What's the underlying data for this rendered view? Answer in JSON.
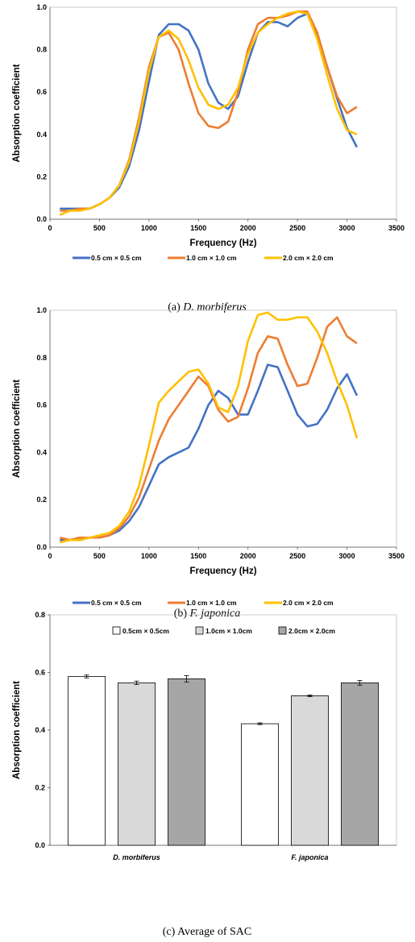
{
  "captions": [
    {
      "prefix": "(a)",
      "text": "D.  morbiferus",
      "italic": true
    },
    {
      "prefix": "(b)",
      "text": "F.  japonica",
      "italic": true
    },
    {
      "prefix": "(c)",
      "text": "Average  of  SAC",
      "italic": false
    }
  ],
  "chart_data": [
    {
      "type": "line",
      "xlabel": "Frequency (Hz)",
      "ylabel": "Absorption coefficient",
      "xlim": [
        0,
        3500
      ],
      "ylim": [
        0,
        1.0
      ],
      "xticks": [
        0,
        500,
        1000,
        1500,
        2000,
        2500,
        3000,
        3500
      ],
      "yticks": [
        0.0,
        0.2,
        0.4,
        0.6,
        0.8,
        1.0
      ],
      "legend_position": "bottom",
      "series": [
        {
          "name": "0.5 cm × 0.5 cm",
          "color": "#4472C4",
          "x": [
            100,
            200,
            300,
            400,
            500,
            600,
            700,
            800,
            900,
            1000,
            1100,
            1200,
            1300,
            1400,
            1500,
            1600,
            1700,
            1800,
            1900,
            2000,
            2100,
            2200,
            2300,
            2400,
            2500,
            2600,
            2700,
            2800,
            2900,
            3000,
            3100
          ],
          "y": [
            0.05,
            0.05,
            0.05,
            0.05,
            0.07,
            0.1,
            0.15,
            0.25,
            0.42,
            0.65,
            0.87,
            0.92,
            0.92,
            0.89,
            0.8,
            0.64,
            0.55,
            0.52,
            0.58,
            0.74,
            0.88,
            0.93,
            0.93,
            0.91,
            0.95,
            0.97,
            0.87,
            0.72,
            0.57,
            0.43,
            0.34
          ]
        },
        {
          "name": "1.0 cm × 1.0 cm",
          "color": "#ED7D31",
          "x": [
            100,
            200,
            300,
            400,
            500,
            600,
            700,
            800,
            900,
            1000,
            1100,
            1200,
            1300,
            1400,
            1500,
            1600,
            1700,
            1800,
            1900,
            2000,
            2100,
            2200,
            2300,
            2400,
            2500,
            2600,
            2700,
            2800,
            2900,
            3000,
            3100
          ],
          "y": [
            0.04,
            0.04,
            0.05,
            0.05,
            0.07,
            0.1,
            0.16,
            0.28,
            0.48,
            0.72,
            0.86,
            0.88,
            0.8,
            0.64,
            0.5,
            0.44,
            0.43,
            0.46,
            0.6,
            0.8,
            0.92,
            0.95,
            0.95,
            0.96,
            0.98,
            0.98,
            0.88,
            0.72,
            0.58,
            0.5,
            0.53
          ]
        },
        {
          "name": "2.0 cm × 2.0 cm",
          "color": "#FFC000",
          "x": [
            100,
            200,
            300,
            400,
            500,
            600,
            700,
            800,
            900,
            1000,
            1100,
            1200,
            1300,
            1400,
            1500,
            1600,
            1700,
            1800,
            1900,
            2000,
            2100,
            2200,
            2300,
            2400,
            2500,
            2600,
            2700,
            2800,
            2900,
            3000,
            3100
          ],
          "y": [
            0.02,
            0.04,
            0.04,
            0.05,
            0.07,
            0.1,
            0.16,
            0.27,
            0.46,
            0.7,
            0.86,
            0.89,
            0.85,
            0.75,
            0.62,
            0.54,
            0.52,
            0.54,
            0.62,
            0.78,
            0.88,
            0.92,
            0.95,
            0.97,
            0.98,
            0.97,
            0.85,
            0.68,
            0.52,
            0.42,
            0.4
          ]
        }
      ]
    },
    {
      "type": "line",
      "xlabel": "Frequency (Hz)",
      "ylabel": "Absorption coefficient",
      "xlim": [
        0,
        3500
      ],
      "ylim": [
        0,
        1.0
      ],
      "xticks": [
        0,
        500,
        1000,
        1500,
        2000,
        2500,
        3000,
        3500
      ],
      "yticks": [
        0.0,
        0.2,
        0.4,
        0.6,
        0.8,
        1.0
      ],
      "legend_position": "bottom",
      "series": [
        {
          "name": "0.5 cm × 0.5 cm",
          "color": "#4472C4",
          "x": [
            100,
            200,
            300,
            400,
            500,
            600,
            700,
            800,
            900,
            1000,
            1100,
            1200,
            1300,
            1400,
            1500,
            1600,
            1700,
            1800,
            1900,
            2000,
            2100,
            2200,
            2300,
            2400,
            2500,
            2600,
            2700,
            2800,
            2900,
            3000,
            3100
          ],
          "y": [
            0.03,
            0.03,
            0.03,
            0.04,
            0.04,
            0.05,
            0.07,
            0.11,
            0.17,
            0.26,
            0.35,
            0.38,
            0.4,
            0.42,
            0.5,
            0.6,
            0.66,
            0.63,
            0.56,
            0.56,
            0.66,
            0.77,
            0.76,
            0.66,
            0.56,
            0.51,
            0.52,
            0.58,
            0.67,
            0.73,
            0.64
          ]
        },
        {
          "name": "1.0 cm × 1.0 cm",
          "color": "#ED7D31",
          "x": [
            100,
            200,
            300,
            400,
            500,
            600,
            700,
            800,
            900,
            1000,
            1100,
            1200,
            1300,
            1400,
            1500,
            1600,
            1700,
            1800,
            1900,
            2000,
            2100,
            2200,
            2300,
            2400,
            2500,
            2600,
            2700,
            2800,
            2900,
            3000,
            3100
          ],
          "y": [
            0.04,
            0.03,
            0.04,
            0.04,
            0.04,
            0.05,
            0.08,
            0.13,
            0.21,
            0.33,
            0.45,
            0.54,
            0.6,
            0.66,
            0.72,
            0.68,
            0.58,
            0.53,
            0.55,
            0.67,
            0.82,
            0.89,
            0.88,
            0.77,
            0.68,
            0.69,
            0.8,
            0.93,
            0.97,
            0.89,
            0.86
          ]
        },
        {
          "name": "2.0 cm × 2.0 cm",
          "color": "#FFC000",
          "x": [
            100,
            200,
            300,
            400,
            500,
            600,
            700,
            800,
            900,
            1000,
            1100,
            1200,
            1300,
            1400,
            1500,
            1600,
            1700,
            1800,
            1900,
            2000,
            2100,
            2200,
            2300,
            2400,
            2500,
            2600,
            2700,
            2800,
            2900,
            3000,
            3100
          ],
          "y": [
            0.02,
            0.03,
            0.03,
            0.04,
            0.05,
            0.06,
            0.09,
            0.15,
            0.26,
            0.43,
            0.61,
            0.66,
            0.7,
            0.74,
            0.75,
            0.69,
            0.59,
            0.57,
            0.68,
            0.87,
            0.98,
            0.99,
            0.96,
            0.96,
            0.97,
            0.97,
            0.91,
            0.82,
            0.7,
            0.6,
            0.46
          ]
        }
      ]
    },
    {
      "type": "bar",
      "ylabel": "Absorption coefficient",
      "ylim": [
        0,
        0.8
      ],
      "yticks": [
        0.0,
        0.2,
        0.4,
        0.6,
        0.8
      ],
      "categories": [
        "D. morbiferus",
        "F. japonica"
      ],
      "legend_position": "top",
      "series": [
        {
          "name": "0.5cm × 0.5cm",
          "color": "#FFFFFF",
          "values": [
            0.586,
            0.422
          ],
          "errors": [
            0.005,
            0.003
          ]
        },
        {
          "name": "1.0cm × 1.0cm",
          "color": "#D9D9D9",
          "values": [
            0.564,
            0.519
          ],
          "errors": [
            0.006,
            0.003
          ]
        },
        {
          "name": "2.0cm × 2.0cm",
          "color": "#A6A6A6",
          "values": [
            0.578,
            0.564
          ],
          "errors": [
            0.011,
            0.008
          ]
        }
      ]
    }
  ]
}
